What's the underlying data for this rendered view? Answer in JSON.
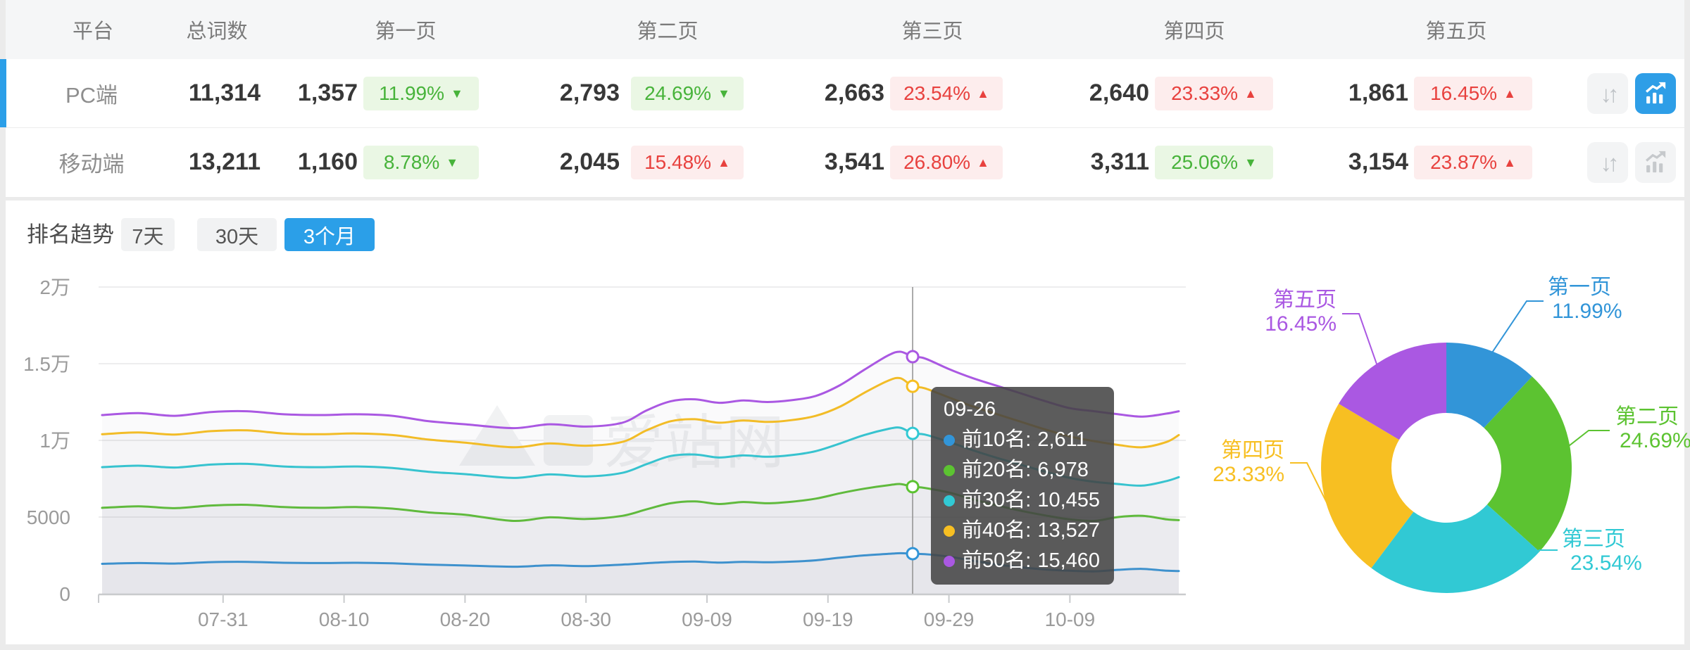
{
  "table": {
    "headers": [
      "平台",
      "总词数",
      "第一页",
      "第二页",
      "第三页",
      "第四页",
      "第五页"
    ],
    "rows": [
      {
        "platform": "PC端",
        "total": "11,314",
        "selected": true,
        "buttons": {
          "sort": "inactive",
          "trend_chart": "active"
        },
        "pages": [
          {
            "count": "1,357",
            "pct": "11.99%",
            "arrow": "▼",
            "direction": "down"
          },
          {
            "count": "2,793",
            "pct": "24.69%",
            "arrow": "▼",
            "direction": "down"
          },
          {
            "count": "2,663",
            "pct": "23.54%",
            "arrow": "▲",
            "direction": "up"
          },
          {
            "count": "2,640",
            "pct": "23.33%",
            "arrow": "▲",
            "direction": "up"
          },
          {
            "count": "1,861",
            "pct": "16.45%",
            "arrow": "▲",
            "direction": "up"
          }
        ]
      },
      {
        "platform": "移动端",
        "total": "13,211",
        "selected": false,
        "buttons": {
          "sort": "inactive",
          "trend_chart": "inactive"
        },
        "pages": [
          {
            "count": "1,160",
            "pct": "8.78%",
            "arrow": "▼",
            "direction": "down"
          },
          {
            "count": "2,045",
            "pct": "15.48%",
            "arrow": "▲",
            "direction": "up"
          },
          {
            "count": "3,541",
            "pct": "26.80%",
            "arrow": "▲",
            "direction": "up"
          },
          {
            "count": "3,311",
            "pct": "25.06%",
            "arrow": "▼",
            "direction": "down"
          },
          {
            "count": "3,154",
            "pct": "23.87%",
            "arrow": "▲",
            "direction": "up"
          }
        ]
      }
    ]
  },
  "trend": {
    "label": "排名趋势",
    "tabs": [
      {
        "label": "7天",
        "active": false
      },
      {
        "label": "30天",
        "active": false
      },
      {
        "label": "3个月",
        "active": true
      }
    ]
  },
  "tooltip": {
    "title": "09-26",
    "items": [
      {
        "label": "前10名:",
        "value": "2,611"
      },
      {
        "label": "前20名:",
        "value": "6,978"
      },
      {
        "label": "前30名:",
        "value": "10,455"
      },
      {
        "label": "前40名:",
        "value": "13,527"
      },
      {
        "label": "前50名:",
        "value": "15,460"
      }
    ]
  },
  "watermark": "爱站网",
  "colors": {
    "accent_blue": "#2b9fe8",
    "badge_red_text": "#e8413e",
    "badge_red_bg": "#fdeded",
    "badge_green_text": "#47b33a",
    "badge_green_bg": "#eaf7e4",
    "axis_text": "#9b9b9b",
    "grid": "#ededee",
    "crosshair": "#909090"
  },
  "chart_data": [
    {
      "type": "line",
      "title": "排名趋势 3个月",
      "x_tick_labels": [
        "07-31",
        "08-10",
        "08-20",
        "08-30",
        "09-09",
        "09-19",
        "09-29",
        "10-09"
      ],
      "x_tick_days": [
        10,
        20,
        30,
        40,
        50,
        60,
        70,
        80
      ],
      "x_range_days": [
        0,
        89
      ],
      "ylim": [
        0,
        20000
      ],
      "y_ticks": [
        {
          "value": 0,
          "label": "0"
        },
        {
          "value": 5000,
          "label": "5000"
        },
        {
          "value": 10000,
          "label": "1万"
        },
        {
          "value": 15000,
          "label": "1.5万"
        },
        {
          "value": 20000,
          "label": "2万"
        }
      ],
      "grid": true,
      "legend_position": "none",
      "crosshair": {
        "date": "09-26",
        "day": 67
      },
      "note": "points are [day_index, value]; day 0 = 07-21; values at day 67 are exact (tooltip), others estimated from pixels",
      "series": [
        {
          "name": "前10名",
          "color": "#3295d8",
          "value_at_crosshair": 2611,
          "points": [
            [
              0,
              1950
            ],
            [
              3,
              2000
            ],
            [
              6,
              1970
            ],
            [
              9,
              2060
            ],
            [
              12,
              2080
            ],
            [
              15,
              2020
            ],
            [
              18,
              2000
            ],
            [
              21,
              2020
            ],
            [
              24,
              1980
            ],
            [
              27,
              1900
            ],
            [
              30,
              1840
            ],
            [
              34,
              1760
            ],
            [
              37,
              1850
            ],
            [
              40,
              1800
            ],
            [
              43,
              1900
            ],
            [
              45,
              1990
            ],
            [
              47,
              2070
            ],
            [
              49,
              2100
            ],
            [
              51,
              2030
            ],
            [
              53,
              2080
            ],
            [
              55,
              2050
            ],
            [
              57,
              2090
            ],
            [
              59,
              2180
            ],
            [
              61,
              2350
            ],
            [
              63,
              2500
            ],
            [
              65,
              2600
            ],
            [
              66,
              2640
            ],
            [
              67,
              2611
            ],
            [
              68,
              2580
            ],
            [
              70,
              2420
            ],
            [
              72,
              2150
            ],
            [
              74,
              1900
            ],
            [
              76,
              1720
            ],
            [
              78,
              1580
            ],
            [
              80,
              1500
            ],
            [
              82,
              1460
            ],
            [
              84,
              1560
            ],
            [
              86,
              1620
            ],
            [
              88,
              1500
            ],
            [
              89,
              1480
            ]
          ]
        },
        {
          "name": "前20名",
          "color": "#5cc331",
          "value_at_crosshair": 6978,
          "points": [
            [
              0,
              5600
            ],
            [
              3,
              5700
            ],
            [
              6,
              5580
            ],
            [
              9,
              5750
            ],
            [
              12,
              5800
            ],
            [
              15,
              5650
            ],
            [
              18,
              5600
            ],
            [
              21,
              5650
            ],
            [
              24,
              5550
            ],
            [
              27,
              5300
            ],
            [
              30,
              5150
            ],
            [
              34,
              4750
            ],
            [
              37,
              4980
            ],
            [
              40,
              4870
            ],
            [
              43,
              5080
            ],
            [
              45,
              5500
            ],
            [
              47,
              5900
            ],
            [
              49,
              6020
            ],
            [
              51,
              5850
            ],
            [
              53,
              5980
            ],
            [
              55,
              5900
            ],
            [
              57,
              6000
            ],
            [
              59,
              6200
            ],
            [
              61,
              6550
            ],
            [
              63,
              6850
            ],
            [
              65,
              7080
            ],
            [
              66,
              7150
            ],
            [
              67,
              6978
            ],
            [
              68,
              6900
            ],
            [
              70,
              6600
            ],
            [
              72,
              6150
            ],
            [
              74,
              5750
            ],
            [
              76,
              5400
            ],
            [
              78,
              5100
            ],
            [
              80,
              4850
            ],
            [
              82,
              4750
            ],
            [
              84,
              5000
            ],
            [
              86,
              5080
            ],
            [
              88,
              4850
            ],
            [
              89,
              4800
            ]
          ]
        },
        {
          "name": "前30名",
          "color": "#31c9d4",
          "value_at_crosshair": 10455,
          "points": [
            [
              0,
              8250
            ],
            [
              3,
              8350
            ],
            [
              6,
              8230
            ],
            [
              9,
              8420
            ],
            [
              12,
              8470
            ],
            [
              15,
              8300
            ],
            [
              18,
              8250
            ],
            [
              21,
              8300
            ],
            [
              24,
              8200
            ],
            [
              27,
              7950
            ],
            [
              30,
              7800
            ],
            [
              34,
              7550
            ],
            [
              37,
              7780
            ],
            [
              40,
              7650
            ],
            [
              43,
              7880
            ],
            [
              45,
              8450
            ],
            [
              47,
              8980
            ],
            [
              49,
              9080
            ],
            [
              51,
              8880
            ],
            [
              53,
              9020
            ],
            [
              55,
              8930
            ],
            [
              57,
              9040
            ],
            [
              59,
              9300
            ],
            [
              61,
              9800
            ],
            [
              63,
              10350
            ],
            [
              65,
              10750
            ],
            [
              66,
              10820
            ],
            [
              67,
              10455
            ],
            [
              68,
              10380
            ],
            [
              70,
              9900
            ],
            [
              72,
              9350
            ],
            [
              74,
              8850
            ],
            [
              76,
              8400
            ],
            [
              78,
              7950
            ],
            [
              80,
              7550
            ],
            [
              82,
              7300
            ],
            [
              84,
              7150
            ],
            [
              86,
              7050
            ],
            [
              88,
              7350
            ],
            [
              89,
              7600
            ]
          ]
        },
        {
          "name": "前40名",
          "color": "#f7bf22",
          "value_at_crosshair": 13527,
          "points": [
            [
              0,
              10400
            ],
            [
              3,
              10520
            ],
            [
              6,
              10380
            ],
            [
              9,
              10600
            ],
            [
              12,
              10650
            ],
            [
              15,
              10450
            ],
            [
              18,
              10400
            ],
            [
              21,
              10450
            ],
            [
              24,
              10350
            ],
            [
              27,
              10050
            ],
            [
              30,
              9850
            ],
            [
              34,
              9550
            ],
            [
              37,
              9800
            ],
            [
              40,
              9650
            ],
            [
              43,
              9900
            ],
            [
              45,
              10650
            ],
            [
              47,
              11250
            ],
            [
              49,
              11380
            ],
            [
              51,
              11150
            ],
            [
              53,
              11300
            ],
            [
              55,
              11200
            ],
            [
              57,
              11320
            ],
            [
              59,
              11600
            ],
            [
              61,
              12200
            ],
            [
              63,
              13100
            ],
            [
              65,
              13900
            ],
            [
              66,
              14050
            ],
            [
              67,
              13527
            ],
            [
              68,
              13400
            ],
            [
              70,
              12800
            ],
            [
              72,
              12200
            ],
            [
              74,
              11700
            ],
            [
              76,
              11200
            ],
            [
              78,
              10700
            ],
            [
              80,
              10250
            ],
            [
              82,
              9950
            ],
            [
              84,
              9700
            ],
            [
              86,
              9550
            ],
            [
              88,
              9900
            ],
            [
              89,
              10350
            ]
          ]
        },
        {
          "name": "前50名",
          "color": "#aa58e2",
          "value_at_crosshair": 15460,
          "points": [
            [
              0,
              11650
            ],
            [
              3,
              11780
            ],
            [
              6,
              11600
            ],
            [
              9,
              11850
            ],
            [
              12,
              11900
            ],
            [
              15,
              11700
            ],
            [
              18,
              11650
            ],
            [
              21,
              11700
            ],
            [
              24,
              11600
            ],
            [
              27,
              11250
            ],
            [
              30,
              11050
            ],
            [
              34,
              10800
            ],
            [
              37,
              11050
            ],
            [
              40,
              10900
            ],
            [
              43,
              11150
            ],
            [
              45,
              11950
            ],
            [
              47,
              12550
            ],
            [
              49,
              12680
            ],
            [
              51,
              12450
            ],
            [
              53,
              12600
            ],
            [
              55,
              12500
            ],
            [
              57,
              12620
            ],
            [
              59,
              12900
            ],
            [
              61,
              13600
            ],
            [
              63,
              14600
            ],
            [
              65,
              15550
            ],
            [
              66,
              15780
            ],
            [
              67,
              15460
            ],
            [
              68,
              15350
            ],
            [
              70,
              14650
            ],
            [
              72,
              14050
            ],
            [
              74,
              13550
            ],
            [
              76,
              13050
            ],
            [
              78,
              12550
            ],
            [
              80,
              12100
            ],
            [
              82,
              11900
            ],
            [
              84,
              11700
            ],
            [
              86,
              11550
            ],
            [
              88,
              11750
            ],
            [
              89,
              11900
            ]
          ]
        }
      ]
    },
    {
      "type": "donut",
      "labels": [
        "第一页",
        "第二页",
        "第三页",
        "第四页",
        "第五页"
      ],
      "values": [
        11.99,
        24.69,
        23.54,
        23.33,
        16.45
      ],
      "value_labels": [
        "11.99%",
        "24.69%",
        "23.54%",
        "23.33%",
        "16.45%"
      ],
      "colors": [
        "#3295d8",
        "#5cc331",
        "#31c9d4",
        "#f7bf22",
        "#aa58e2"
      ],
      "start_angle_deg": 0,
      "clockwise": true
    }
  ]
}
